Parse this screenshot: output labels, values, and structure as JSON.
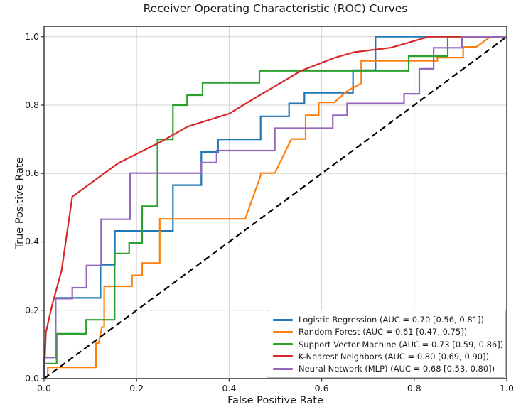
{
  "figure": {
    "title": "Receiver Operating Characteristic (ROC) Curves",
    "xlabel": "False Positive Rate",
    "ylabel": "True Positive Rate"
  },
  "axes": {
    "x_tick_labels": [
      "0.0",
      "0.2",
      "0.4",
      "0.6",
      "0.8",
      "1.0"
    ],
    "y_tick_labels": [
      "0.0",
      "0.2",
      "0.4",
      "0.6",
      "0.8",
      "1.0"
    ],
    "grid_color": "#d4d4d4",
    "spine_color": "#2f2f2f"
  },
  "legend": {
    "items": [
      {
        "label": "Logistic Regression (AUC = 0.70 [0.56, 0.81])",
        "color": "#1f77b4"
      },
      {
        "label": "Random Forest (AUC = 0.61 [0.47, 0.75])",
        "color": "#ff7f0e"
      },
      {
        "label": "Support Vector Machine (AUC = 0.73 [0.59, 0.86])",
        "color": "#2ca02c"
      },
      {
        "label": "K-Nearest Neighbors (AUC = 0.80 [0.69, 0.90])",
        "color": "#d62728"
      },
      {
        "label": "Neural Network (MLP) (AUC = 0.68 [0.53, 0.80])",
        "color": "#9467bd"
      }
    ]
  },
  "chart_data": {
    "type": "line",
    "title": "Receiver Operating Characteristic (ROC) Curves",
    "xlabel": "False Positive Rate",
    "ylabel": "True Positive Rate",
    "xlim": [
      0.0,
      1.0
    ],
    "ylim": [
      0.0,
      1.03
    ],
    "x_ticks": [
      0.0,
      0.2,
      0.4,
      0.6,
      0.8,
      1.0
    ],
    "y_ticks": [
      0.0,
      0.2,
      0.4,
      0.6,
      0.8,
      1.0
    ],
    "grid": true,
    "legend_position": "lower right",
    "series": [
      {
        "name": "Logistic Regression",
        "auc": 0.7,
        "auc_ci": [
          0.56,
          0.81
        ],
        "color": "#1f77b4",
        "points": [
          [
            0,
            0
          ],
          [
            0,
            0.062
          ],
          [
            0.025,
            0.062
          ],
          [
            0.025,
            0.236
          ],
          [
            0.122,
            0.236
          ],
          [
            0.122,
            0.333
          ],
          [
            0.153,
            0.333
          ],
          [
            0.153,
            0.432
          ],
          [
            0.2785,
            0.432
          ],
          [
            0.2785,
            0.566
          ],
          [
            0.34,
            0.566
          ],
          [
            0.34,
            0.663
          ],
          [
            0.376,
            0.663
          ],
          [
            0.376,
            0.7
          ],
          [
            0.468,
            0.7
          ],
          [
            0.468,
            0.767
          ],
          [
            0.5295,
            0.767
          ],
          [
            0.5295,
            0.805
          ],
          [
            0.5627,
            0.805
          ],
          [
            0.5627,
            0.836
          ],
          [
            0.6677,
            0.836
          ],
          [
            0.6677,
            0.902
          ],
          [
            0.7163,
            0.902
          ],
          [
            0.7163,
            1.0
          ],
          [
            1,
            1
          ]
        ]
      },
      {
        "name": "Random Forest",
        "auc": 0.61,
        "auc_ci": [
          0.47,
          0.75
        ],
        "color": "#ff7f0e",
        "points": [
          [
            0,
            0
          ],
          [
            0.008,
            0.008
          ],
          [
            0.008,
            0.033
          ],
          [
            0.112,
            0.033
          ],
          [
            0.112,
            0.104
          ],
          [
            0.118,
            0.104
          ],
          [
            0.125,
            0.151
          ],
          [
            0.13,
            0.151
          ],
          [
            0.13,
            0.27
          ],
          [
            0.19,
            0.27
          ],
          [
            0.19,
            0.302
          ],
          [
            0.212,
            0.302
          ],
          [
            0.212,
            0.338
          ],
          [
            0.25,
            0.338
          ],
          [
            0.25,
            0.467
          ],
          [
            0.4347,
            0.467
          ],
          [
            0.468,
            0.594
          ],
          [
            0.468,
            0.601
          ],
          [
            0.4987,
            0.601
          ],
          [
            0.5346,
            0.701
          ],
          [
            0.5653,
            0.701
          ],
          [
            0.5653,
            0.77
          ],
          [
            0.5935,
            0.77
          ],
          [
            0.5935,
            0.808
          ],
          [
            0.627,
            0.808
          ],
          [
            0.657,
            0.843
          ],
          [
            0.6856,
            0.864
          ],
          [
            0.6856,
            0.9295
          ],
          [
            0.85,
            0.9295
          ],
          [
            0.85,
            0.939
          ],
          [
            0.9058,
            0.939
          ],
          [
            0.9058,
            0.97
          ],
          [
            0.934,
            0.97
          ],
          [
            0.9646,
            1.0
          ],
          [
            1,
            1
          ]
        ]
      },
      {
        "name": "Support Vector Machine",
        "auc": 0.73,
        "auc_ci": [
          0.59,
          0.86
        ],
        "color": "#2ca02c",
        "points": [
          [
            0,
            0
          ],
          [
            0,
            0.044
          ],
          [
            0.0272,
            0.044
          ],
          [
            0.0272,
            0.131
          ],
          [
            0.091,
            0.131
          ],
          [
            0.091,
            0.172
          ],
          [
            0.1526,
            0.172
          ],
          [
            0.1526,
            0.366
          ],
          [
            0.1838,
            0.366
          ],
          [
            0.1838,
            0.397
          ],
          [
            0.212,
            0.397
          ],
          [
            0.212,
            0.504
          ],
          [
            0.245,
            0.504
          ],
          [
            0.245,
            0.7
          ],
          [
            0.2785,
            0.7
          ],
          [
            0.2785,
            0.8
          ],
          [
            0.309,
            0.8
          ],
          [
            0.309,
            0.829
          ],
          [
            0.3425,
            0.829
          ],
          [
            0.3425,
            0.865
          ],
          [
            0.4654,
            0.865
          ],
          [
            0.4654,
            0.9
          ],
          [
            0.788,
            0.9
          ],
          [
            0.788,
            0.943
          ],
          [
            0.8725,
            0.943
          ],
          [
            0.8725,
            1.0
          ],
          [
            1,
            1
          ]
        ]
      },
      {
        "name": "K-Nearest Neighbors",
        "auc": 0.8,
        "auc_ci": [
          0.69,
          0.9
        ],
        "color": "#d62728",
        "points": [
          [
            0,
            0
          ],
          [
            0.004,
            0.135
          ],
          [
            0.017,
            0.213
          ],
          [
            0.038,
            0.317
          ],
          [
            0.061,
            0.532
          ],
          [
            0.16,
            0.63
          ],
          [
            0.25,
            0.691
          ],
          [
            0.31,
            0.737
          ],
          [
            0.4,
            0.775
          ],
          [
            0.455,
            0.82
          ],
          [
            0.514,
            0.867
          ],
          [
            0.555,
            0.9
          ],
          [
            0.627,
            0.938
          ],
          [
            0.67,
            0.955
          ],
          [
            0.75,
            0.968
          ],
          [
            0.8315,
            1.0
          ],
          [
            1,
            1
          ]
        ]
      },
      {
        "name": "Neural Network (MLP)",
        "auc": 0.68,
        "auc_ci": [
          0.53,
          0.8
        ],
        "color": "#9467bd",
        "points": [
          [
            0,
            0
          ],
          [
            0,
            0.062
          ],
          [
            0.025,
            0.062
          ],
          [
            0.025,
            0.234
          ],
          [
            0.061,
            0.234
          ],
          [
            0.061,
            0.266
          ],
          [
            0.0917,
            0.266
          ],
          [
            0.0917,
            0.331
          ],
          [
            0.1234,
            0.331
          ],
          [
            0.1234,
            0.466
          ],
          [
            0.186,
            0.466
          ],
          [
            0.186,
            0.601
          ],
          [
            0.34,
            0.601
          ],
          [
            0.34,
            0.632
          ],
          [
            0.373,
            0.632
          ],
          [
            0.373,
            0.667
          ],
          [
            0.4987,
            0.667
          ],
          [
            0.4987,
            0.7324
          ],
          [
            0.624,
            0.7324
          ],
          [
            0.624,
            0.77
          ],
          [
            0.655,
            0.77
          ],
          [
            0.655,
            0.805
          ],
          [
            0.778,
            0.805
          ],
          [
            0.778,
            0.833
          ],
          [
            0.811,
            0.833
          ],
          [
            0.811,
            0.906
          ],
          [
            0.842,
            0.906
          ],
          [
            0.842,
            0.9675
          ],
          [
            0.903,
            0.9675
          ],
          [
            0.903,
            1.0
          ],
          [
            1,
            1
          ]
        ]
      }
    ],
    "reference_line": {
      "name": "chance-diagonal",
      "style": "dashed",
      "color": "#000000",
      "points": [
        [
          0,
          0
        ],
        [
          1,
          1
        ]
      ]
    }
  }
}
